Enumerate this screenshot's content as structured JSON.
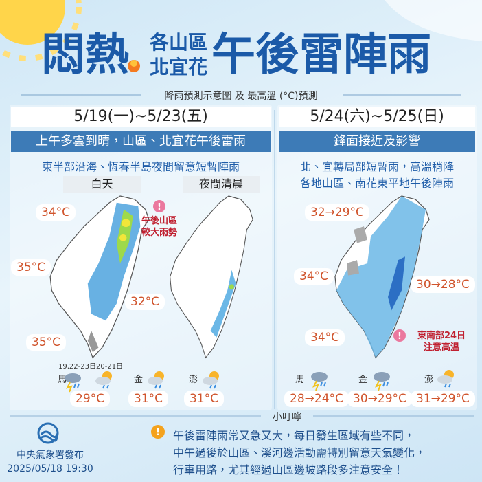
{
  "header": {
    "title_main": "悶熱",
    "title_sub": [
      "各山區",
      "北宜花"
    ],
    "title_big": "午後雷陣雨",
    "subtitle": "降雨預測示意圖 及 最高溫 (°C)預測"
  },
  "left": {
    "date": "5/19(一)~5/23(五)",
    "headline": "上午多雲到晴，山區、北宜花午後雷雨",
    "note": "東半部沿海、恆春半島夜間留意短暫陣雨",
    "labels": [
      "白天",
      "夜間清晨"
    ],
    "temps": [
      "34°C",
      "35°C",
      "32°C",
      "35°C"
    ],
    "alert": [
      "午後山區",
      "較大雨勢"
    ],
    "icon_notes": [
      "19,22-23日",
      "20-21日"
    ],
    "islands": [
      {
        "name": "馬",
        "temp": "29°C"
      },
      {
        "name": "金",
        "temp": "31°C"
      },
      {
        "name": "澎",
        "temp": "31°C"
      }
    ]
  },
  "right": {
    "date": "5/24(六)~5/25(日)",
    "headline": "鋒面接近及影響",
    "note": [
      "北、宜轉局部短暫雨，高溫稍降",
      "各地山區、南花東平地午後陣雨"
    ],
    "temps": [
      "32→29°C",
      "34°C",
      "30→28°C",
      "34°C"
    ],
    "alert": [
      "東南部24日",
      "注意高溫"
    ],
    "islands": [
      {
        "name": "馬",
        "temp": "28→24°C"
      },
      {
        "name": "金",
        "temp": "30→29°C"
      },
      {
        "name": "澎",
        "temp": "31→29°C"
      }
    ]
  },
  "footer": {
    "tip_title": "小叮嚀",
    "tips": [
      "午後雷陣雨常又急又大，每日發生區域有些不同，",
      "中午過後於山區、溪河邊活動需特別留意天氣變化，",
      "行車用路，尤其經過山區邊坡路段多注意安全！"
    ],
    "agency": "中央氣象署發布",
    "time": "2025/05/18 19:30"
  }
}
